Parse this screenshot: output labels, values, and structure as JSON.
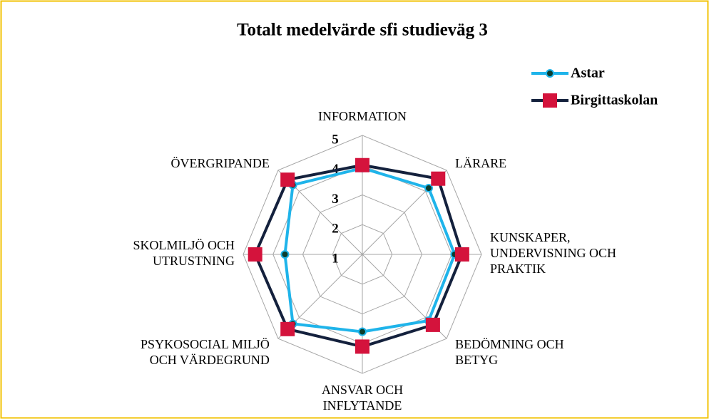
{
  "chart_data": {
    "type": "radar",
    "title": "Totalt medelvärde sfi studieväg 3",
    "categories": [
      "INFORMATION",
      "LÄRARE",
      "KUNSKAPER,\nUNDERVISNING OCH\nPRAKTIK",
      "BEDÖMNING OCH\nBETYG",
      "ANSVAR OCH\nINFLYTANDE",
      "PSYKOSOCIAL MILJÖ\nOCH VÄRDEGRUND",
      "SKOLMILJÖ OCH\nUTRUSTNING",
      "ÖVERGRIPANDE"
    ],
    "series": [
      {
        "name": "Astar",
        "color": "#1fb4ea",
        "marker_color": "#0b3d2e",
        "values": [
          3.9,
          4.15,
          4.1,
          4.15,
          3.6,
          4.3,
          3.6,
          4.3
        ]
      },
      {
        "name": "Birgittaskolan",
        "color": "#14213d",
        "marker_color": "#d4133c",
        "values": [
          4.0,
          4.6,
          4.35,
          4.35,
          4.1,
          4.55,
          4.6,
          4.55
        ]
      }
    ],
    "ylim": [
      1,
      5
    ],
    "yticks": [
      1,
      2,
      3,
      4,
      5
    ],
    "grid": true,
    "legend": "upper right"
  }
}
